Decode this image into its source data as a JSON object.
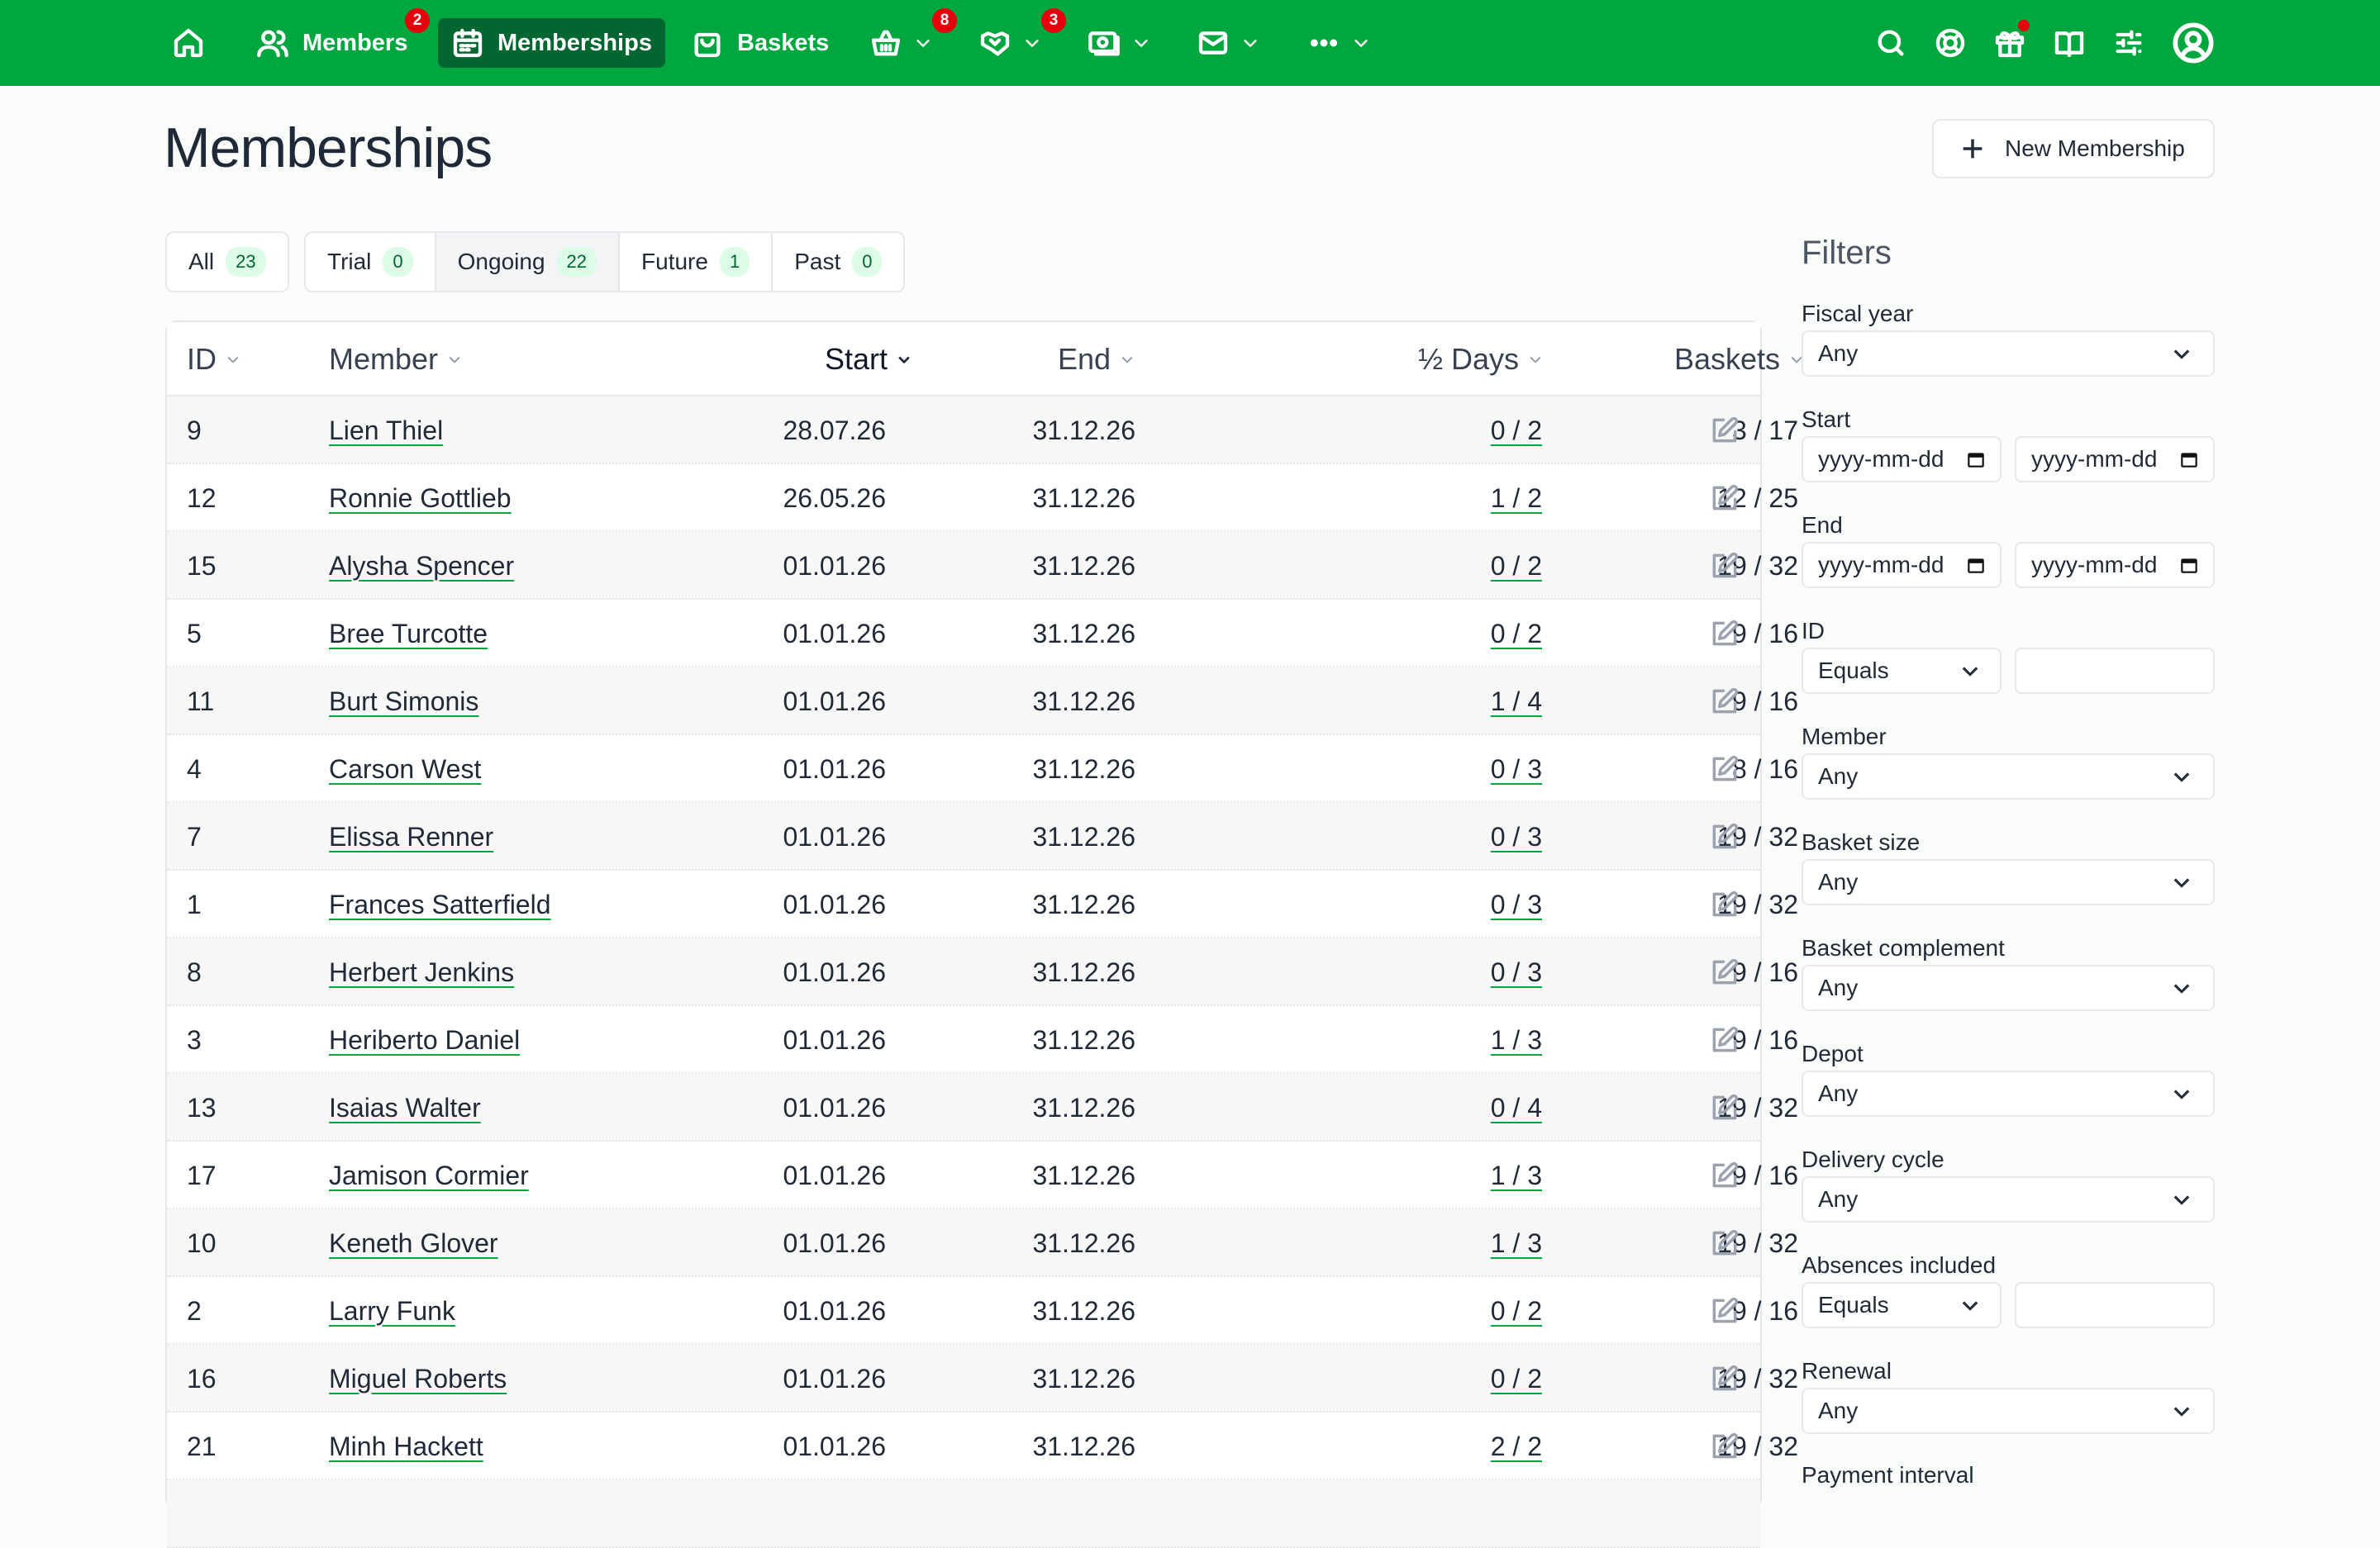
{
  "nav": {
    "home_icon": "home-icon",
    "members_label": "Members",
    "members_badge": "2",
    "memberships_label": "Memberships",
    "baskets_label": "Baskets",
    "shop_badge": "8",
    "activities_badge": "3"
  },
  "page": {
    "title": "Memberships",
    "new_button": "New Membership"
  },
  "scopes": [
    {
      "label": "All",
      "count": "23"
    },
    {
      "label": "Trial",
      "count": "0"
    },
    {
      "label": "Ongoing",
      "count": "22"
    },
    {
      "label": "Future",
      "count": "1"
    },
    {
      "label": "Past",
      "count": "0"
    }
  ],
  "table": {
    "headers": {
      "id": "ID",
      "member": "Member",
      "start": "Start",
      "end": "End",
      "days": "½ Days",
      "baskets": "Baskets"
    },
    "rows": [
      {
        "id": "9",
        "member": "Lien Thiel",
        "start": "28.07.26",
        "end": "31.12.26",
        "days": "0 / 2",
        "baskets": "3 / 17"
      },
      {
        "id": "12",
        "member": "Ronnie Gottlieb",
        "start": "26.05.26",
        "end": "31.12.26",
        "days": "1 / 2",
        "baskets": "12 / 25"
      },
      {
        "id": "15",
        "member": "Alysha Spencer",
        "start": "01.01.26",
        "end": "31.12.26",
        "days": "0 / 2",
        "baskets": "19 / 32"
      },
      {
        "id": "5",
        "member": "Bree Turcotte",
        "start": "01.01.26",
        "end": "31.12.26",
        "days": "0 / 2",
        "baskets": "9 / 16"
      },
      {
        "id": "11",
        "member": "Burt Simonis",
        "start": "01.01.26",
        "end": "31.12.26",
        "days": "1 / 4",
        "baskets": "9 / 16"
      },
      {
        "id": "4",
        "member": "Carson West",
        "start": "01.01.26",
        "end": "31.12.26",
        "days": "0 / 3",
        "baskets": "8 / 16"
      },
      {
        "id": "7",
        "member": "Elissa Renner",
        "start": "01.01.26",
        "end": "31.12.26",
        "days": "0 / 3",
        "baskets": "19 / 32"
      },
      {
        "id": "1",
        "member": "Frances Satterfield",
        "start": "01.01.26",
        "end": "31.12.26",
        "days": "0 / 3",
        "baskets": "19 / 32"
      },
      {
        "id": "8",
        "member": "Herbert Jenkins",
        "start": "01.01.26",
        "end": "31.12.26",
        "days": "0 / 3",
        "baskets": "9 / 16"
      },
      {
        "id": "3",
        "member": "Heriberto Daniel",
        "start": "01.01.26",
        "end": "31.12.26",
        "days": "1 / 3",
        "baskets": "9 / 16"
      },
      {
        "id": "13",
        "member": "Isaias Walter",
        "start": "01.01.26",
        "end": "31.12.26",
        "days": "0 / 4",
        "baskets": "19 / 32"
      },
      {
        "id": "17",
        "member": "Jamison Cormier",
        "start": "01.01.26",
        "end": "31.12.26",
        "days": "1 / 3",
        "baskets": "9 / 16"
      },
      {
        "id": "10",
        "member": "Keneth Glover",
        "start": "01.01.26",
        "end": "31.12.26",
        "days": "1 / 3",
        "baskets": "19 / 32"
      },
      {
        "id": "2",
        "member": "Larry Funk",
        "start": "01.01.26",
        "end": "31.12.26",
        "days": "0 / 2",
        "baskets": "9 / 16"
      },
      {
        "id": "16",
        "member": "Miguel Roberts",
        "start": "01.01.26",
        "end": "31.12.26",
        "days": "0 / 2",
        "baskets": "19 / 32"
      },
      {
        "id": "21",
        "member": "Minh Hackett",
        "start": "01.01.26",
        "end": "31.12.26",
        "days": "2 / 2",
        "baskets": "19 / 32"
      },
      {
        "id": "",
        "member": "",
        "start": "",
        "end": "",
        "days": "",
        "baskets": ""
      }
    ]
  },
  "filters": {
    "title": "Filters",
    "fiscal_year_label": "Fiscal year",
    "fiscal_year_value": "Any",
    "start_label": "Start",
    "end_label": "End",
    "date_placeholder": "yyyy-mm-dd",
    "id_label": "ID",
    "id_predicate": "Equals",
    "member_label": "Member",
    "member_value": "Any",
    "basket_size_label": "Basket size",
    "basket_size_value": "Any",
    "basket_complement_label": "Basket complement",
    "basket_complement_value": "Any",
    "depot_label": "Depot",
    "depot_value": "Any",
    "delivery_cycle_label": "Delivery cycle",
    "delivery_cycle_value": "Any",
    "absences_label": "Absences included",
    "absences_predicate": "Equals",
    "renewal_label": "Renewal",
    "renewal_value": "Any",
    "payment_interval_label": "Payment interval"
  },
  "colors": {
    "brand": "#00a63e",
    "brand_dark": "#016630",
    "badge": "#e7000b"
  }
}
